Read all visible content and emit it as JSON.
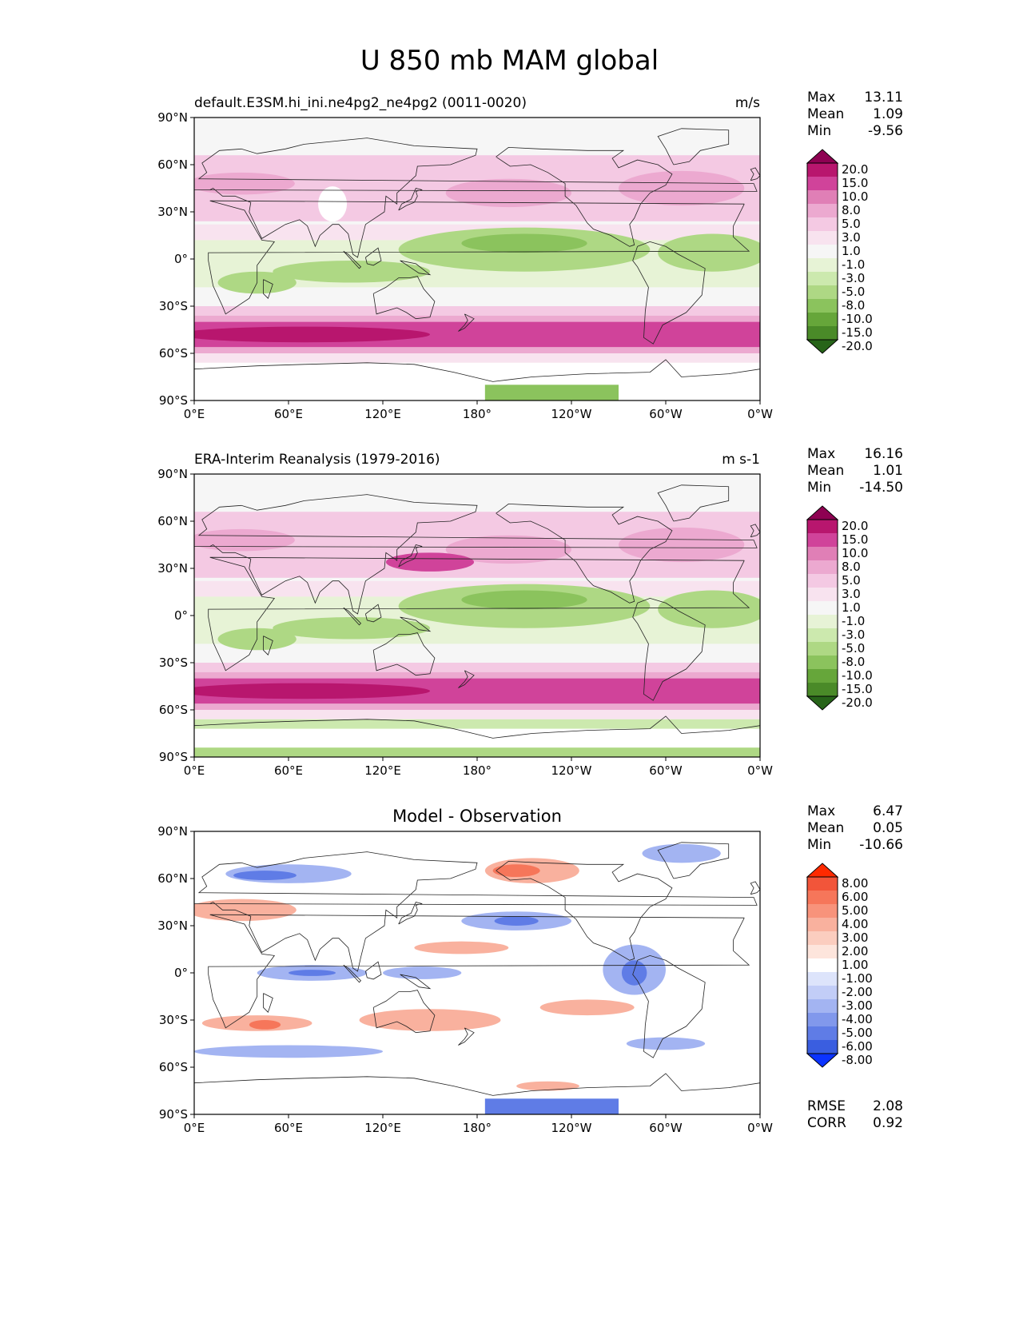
{
  "figure": {
    "title": "U 850 mb MAM global"
  },
  "axes": {
    "lat_ticks": [
      "90°N",
      "60°N",
      "30°N",
      "0°",
      "30°S",
      "60°S",
      "90°S"
    ],
    "lon_ticks": [
      "0°E",
      "60°E",
      "120°E",
      "180°",
      "120°W",
      "60°W",
      "0°W"
    ]
  },
  "panels": [
    {
      "id": "model",
      "left_title": "default.E3SM.hi_ini.ne4pg2_ne4pg2 (0011-0020)",
      "center_title": "",
      "units": "m/s",
      "stats": [
        {
          "label": "Max",
          "value": "13.11"
        },
        {
          "label": "Mean",
          "value": "1.09"
        },
        {
          "label": "Min",
          "value": "-9.56"
        }
      ],
      "colorbar": {
        "levels": [
          "20.0",
          "15.0",
          "10.0",
          "8.0",
          "5.0",
          "3.0",
          "1.0",
          "-1.0",
          "-3.0",
          "-5.0",
          "-8.0",
          "-10.0",
          "-15.0",
          "-20.0"
        ],
        "colors": [
          "#8e0152",
          "#b8166e",
          "#d0439a",
          "#e07fb6",
          "#eca9d0",
          "#f4c9e3",
          "#f8e3ef",
          "#f6f6f6",
          "#e7f3d6",
          "#cce9ae",
          "#aed884",
          "#8bc35d",
          "#66a63a",
          "#4a8a28",
          "#276419"
        ]
      },
      "fields": {
        "green_belt": "#aed884",
        "green_belt_deep": "#8bc35d",
        "jet_south": "#d0439a",
        "jet_south_deep": "#b8166e",
        "jet_north": "#eca9d0",
        "subtropical_pink": "#f4c9e3",
        "ocean_base": "#f6f6f6",
        "south_pole_green": "#8bc35d"
      }
    },
    {
      "id": "obs",
      "left_title": "ERA-Interim Reanalysis (1979-2016)",
      "center_title": "",
      "units": "m s-1",
      "stats": [
        {
          "label": "Max",
          "value": "16.16"
        },
        {
          "label": "Mean",
          "value": "1.01"
        },
        {
          "label": "Min",
          "value": "-14.50"
        }
      ],
      "colorbar": {
        "levels": [
          "20.0",
          "15.0",
          "10.0",
          "8.0",
          "5.0",
          "3.0",
          "1.0",
          "-1.0",
          "-3.0",
          "-5.0",
          "-8.0",
          "-10.0",
          "-15.0",
          "-20.0"
        ],
        "colors": [
          "#8e0152",
          "#b8166e",
          "#d0439a",
          "#e07fb6",
          "#eca9d0",
          "#f4c9e3",
          "#f8e3ef",
          "#f6f6f6",
          "#e7f3d6",
          "#cce9ae",
          "#aed884",
          "#8bc35d",
          "#66a63a",
          "#4a8a28",
          "#276419"
        ]
      },
      "fields": {
        "green_belt": "#aed884",
        "green_belt_deep": "#8bc35d",
        "jet_south": "#d0439a",
        "jet_south_deep": "#b8166e",
        "jet_north": "#eca9d0",
        "subtropical_pink": "#f4c9e3",
        "ocean_base": "#f6f6f6",
        "south_pole_green": "#aed884"
      }
    },
    {
      "id": "diff",
      "left_title": "",
      "center_title": "Model - Observation",
      "units": "",
      "stats": [
        {
          "label": "Max",
          "value": "6.47"
        },
        {
          "label": "Mean",
          "value": "0.05"
        },
        {
          "label": "Min",
          "value": "-10.66"
        }
      ],
      "extra_stats": [
        {
          "label": "RMSE",
          "value": "2.08"
        },
        {
          "label": "CORR",
          "value": "0.92"
        }
      ],
      "colorbar": {
        "levels": [
          "8.00",
          "6.00",
          "5.00",
          "4.00",
          "3.00",
          "2.00",
          "1.00",
          "-1.00",
          "-2.00",
          "-3.00",
          "-4.00",
          "-5.00",
          "-6.00",
          "-8.00"
        ],
        "colors": [
          "#ff2a00",
          "#f2553a",
          "#f6765a",
          "#f8937b",
          "#f9b19e",
          "#fbcdbf",
          "#fde5dc",
          "#ffffff",
          "#dde4fb",
          "#c2cdf7",
          "#a3b4f2",
          "#8198ec",
          "#5f7ce6",
          "#3a5ee0",
          "#0b33ff"
        ]
      },
      "fields": {
        "blue": "#a3b4f2",
        "blue_deep": "#5f7ce6",
        "red": "#f9b19e",
        "red_deep": "#f6765a",
        "ocean_base": "#ffffff"
      }
    }
  ]
}
